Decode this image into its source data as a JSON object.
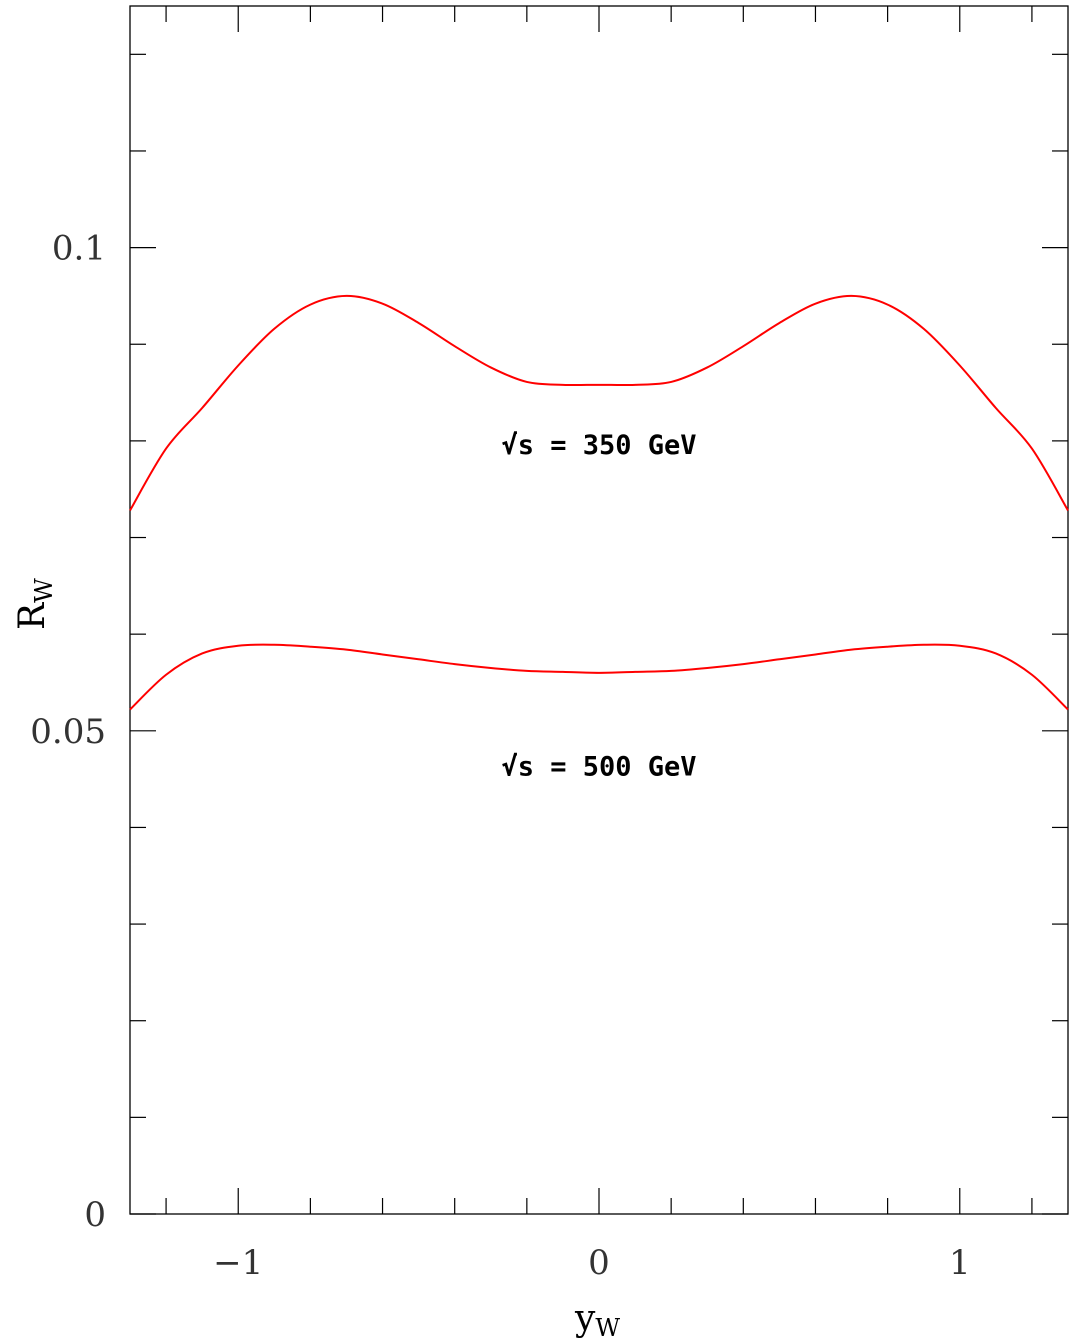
{
  "chart_data": {
    "type": "line",
    "xlabel": "y",
    "xlabel_sub": "W",
    "ylabel": "R",
    "ylabel_sub": "W",
    "xlim": [
      -1.3,
      1.3
    ],
    "ylim": [
      0,
      0.125
    ],
    "x_major_ticks": [
      -1,
      0,
      1
    ],
    "x_tick_labels": [
      "−1",
      "0",
      "1"
    ],
    "x_minor_step": 0.2,
    "y_major_ticks": [
      0,
      0.05,
      0.1
    ],
    "y_tick_labels": [
      "0",
      "0.05",
      "0.1"
    ],
    "y_minor_step": 0.01,
    "grid": false,
    "line_color": "#ff0000",
    "series": [
      {
        "name": "√s = 350 GeV",
        "x": [
          -1.3,
          -1.2,
          -1.1,
          -1.0,
          -0.9,
          -0.8,
          -0.7,
          -0.6,
          -0.5,
          -0.4,
          -0.3,
          -0.2,
          -0.1,
          0.0,
          0.1,
          0.2,
          0.3,
          0.4,
          0.5,
          0.6,
          0.7,
          0.8,
          0.9,
          1.0,
          1.1,
          1.2,
          1.3
        ],
        "y": [
          0.0728,
          0.0792,
          0.0834,
          0.0878,
          0.0916,
          0.0941,
          0.095,
          0.0942,
          0.0922,
          0.0898,
          0.0876,
          0.0861,
          0.0858,
          0.0858,
          0.0858,
          0.0861,
          0.0876,
          0.0898,
          0.0922,
          0.0942,
          0.095,
          0.0941,
          0.0916,
          0.0878,
          0.0834,
          0.0792,
          0.0728
        ]
      },
      {
        "name": "√s = 500 GeV",
        "x": [
          -1.3,
          -1.2,
          -1.1,
          -1.0,
          -0.9,
          -0.8,
          -0.7,
          -0.6,
          -0.5,
          -0.4,
          -0.3,
          -0.2,
          -0.1,
          0.0,
          0.1,
          0.2,
          0.3,
          0.4,
          0.5,
          0.6,
          0.7,
          0.8,
          0.9,
          1.0,
          1.1,
          1.2,
          1.3
        ],
        "y": [
          0.0522,
          0.0558,
          0.058,
          0.0588,
          0.0589,
          0.0587,
          0.0584,
          0.0579,
          0.0574,
          0.0569,
          0.0565,
          0.0562,
          0.0561,
          0.056,
          0.0561,
          0.0562,
          0.0565,
          0.0569,
          0.0574,
          0.0579,
          0.0584,
          0.0587,
          0.0589,
          0.0588,
          0.058,
          0.0558,
          0.0522
        ]
      }
    ],
    "annotations": [
      {
        "text": "√s = 350 GeV",
        "x": 0.0,
        "y": 0.0797
      },
      {
        "text": "√s = 500 GeV",
        "x": 0.0,
        "y": 0.0464
      }
    ]
  }
}
